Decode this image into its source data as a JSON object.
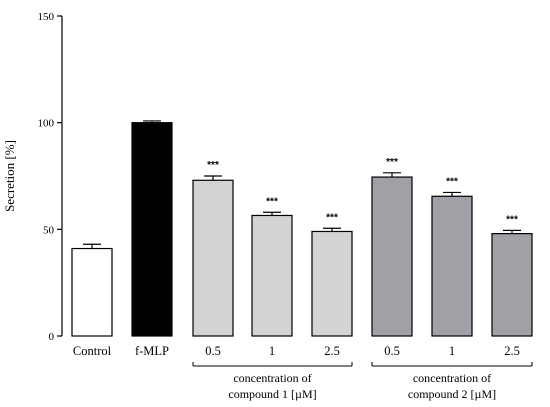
{
  "chart_data": {
    "type": "bar",
    "ylabel": "Secretion [%]",
    "ylim": [
      0,
      150
    ],
    "yticks": [
      0,
      50,
      100,
      150
    ],
    "categories": [
      "Control",
      "f-MLP",
      "0.5",
      "1",
      "2.5",
      "0.5",
      "1",
      "2.5"
    ],
    "values": [
      41,
      100,
      73,
      56.5,
      49,
      74.5,
      65.5,
      48
    ],
    "errors": [
      2,
      0.8,
      2,
      1.5,
      1.5,
      2,
      1.8,
      1.5
    ],
    "significance": [
      "",
      "",
      "***",
      "***",
      "***",
      "***",
      "***",
      "***"
    ],
    "bar_colors": [
      "#ffffff",
      "#000000",
      "#d3d3d3",
      "#d3d3d3",
      "#d3d3d3",
      "#a0a0a6",
      "#a0a0a6",
      "#a0a0a6"
    ],
    "groups": [
      {
        "label_line1": "concentration of",
        "label_line2": "compound 1 [µM]",
        "bars": [
          2,
          4
        ]
      },
      {
        "label_line1": "concentration of",
        "label_line2": "compound 2 [µM]",
        "bars": [
          5,
          7
        ]
      }
    ]
  }
}
